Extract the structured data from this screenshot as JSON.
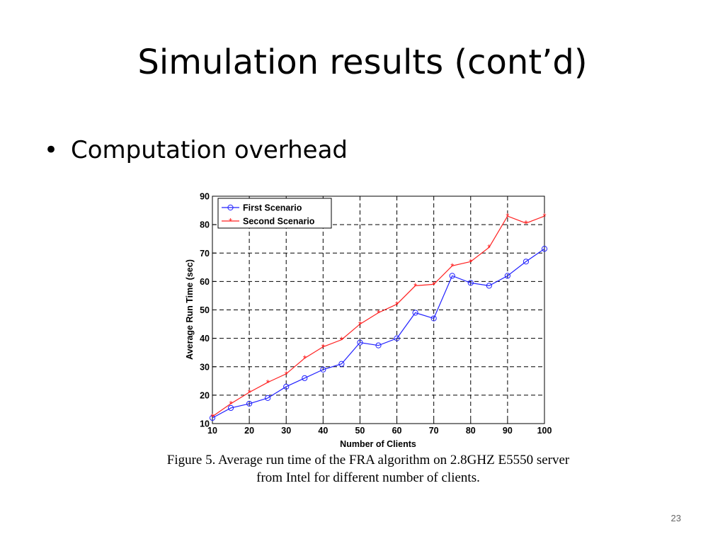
{
  "slide": {
    "title": "Simulation results (cont’d)",
    "bullet": "Computation overhead",
    "caption_line1": "Figure 5. Average run time of the FRA algorithm on 2.8GHZ E5550 server",
    "caption_line2": "from Intel for different number of clients.",
    "page_number": "23"
  },
  "chart_data": {
    "type": "line",
    "title": "",
    "xlabel": "Number of Clients",
    "ylabel": "Average Run Time (sec)",
    "xlim": [
      10,
      100
    ],
    "ylim": [
      10,
      90
    ],
    "x_ticks": [
      10,
      20,
      30,
      40,
      50,
      60,
      70,
      80,
      90,
      100
    ],
    "y_ticks": [
      10,
      20,
      30,
      40,
      50,
      60,
      70,
      80,
      90
    ],
    "grid": true,
    "grid_style": "dashed",
    "legend_position": "top-left",
    "x": [
      10,
      15,
      20,
      25,
      30,
      35,
      40,
      45,
      50,
      55,
      60,
      65,
      70,
      75,
      80,
      85,
      90,
      95,
      100
    ],
    "series": [
      {
        "name": "First Scenario",
        "color": "#2020ff",
        "marker": "circle",
        "values": [
          12,
          15.5,
          17,
          19,
          23,
          26,
          29,
          31,
          38.5,
          37.5,
          40,
          49,
          47,
          62,
          59.5,
          58.5,
          62,
          67,
          71.5
        ]
      },
      {
        "name": "Second Scenario",
        "color": "#ff2020",
        "marker": "star",
        "values": [
          12.5,
          17,
          21,
          24.5,
          27.5,
          33,
          37,
          39.5,
          45,
          49,
          52,
          58.5,
          59,
          65.5,
          67,
          72,
          83,
          80.5,
          83
        ]
      }
    ]
  }
}
